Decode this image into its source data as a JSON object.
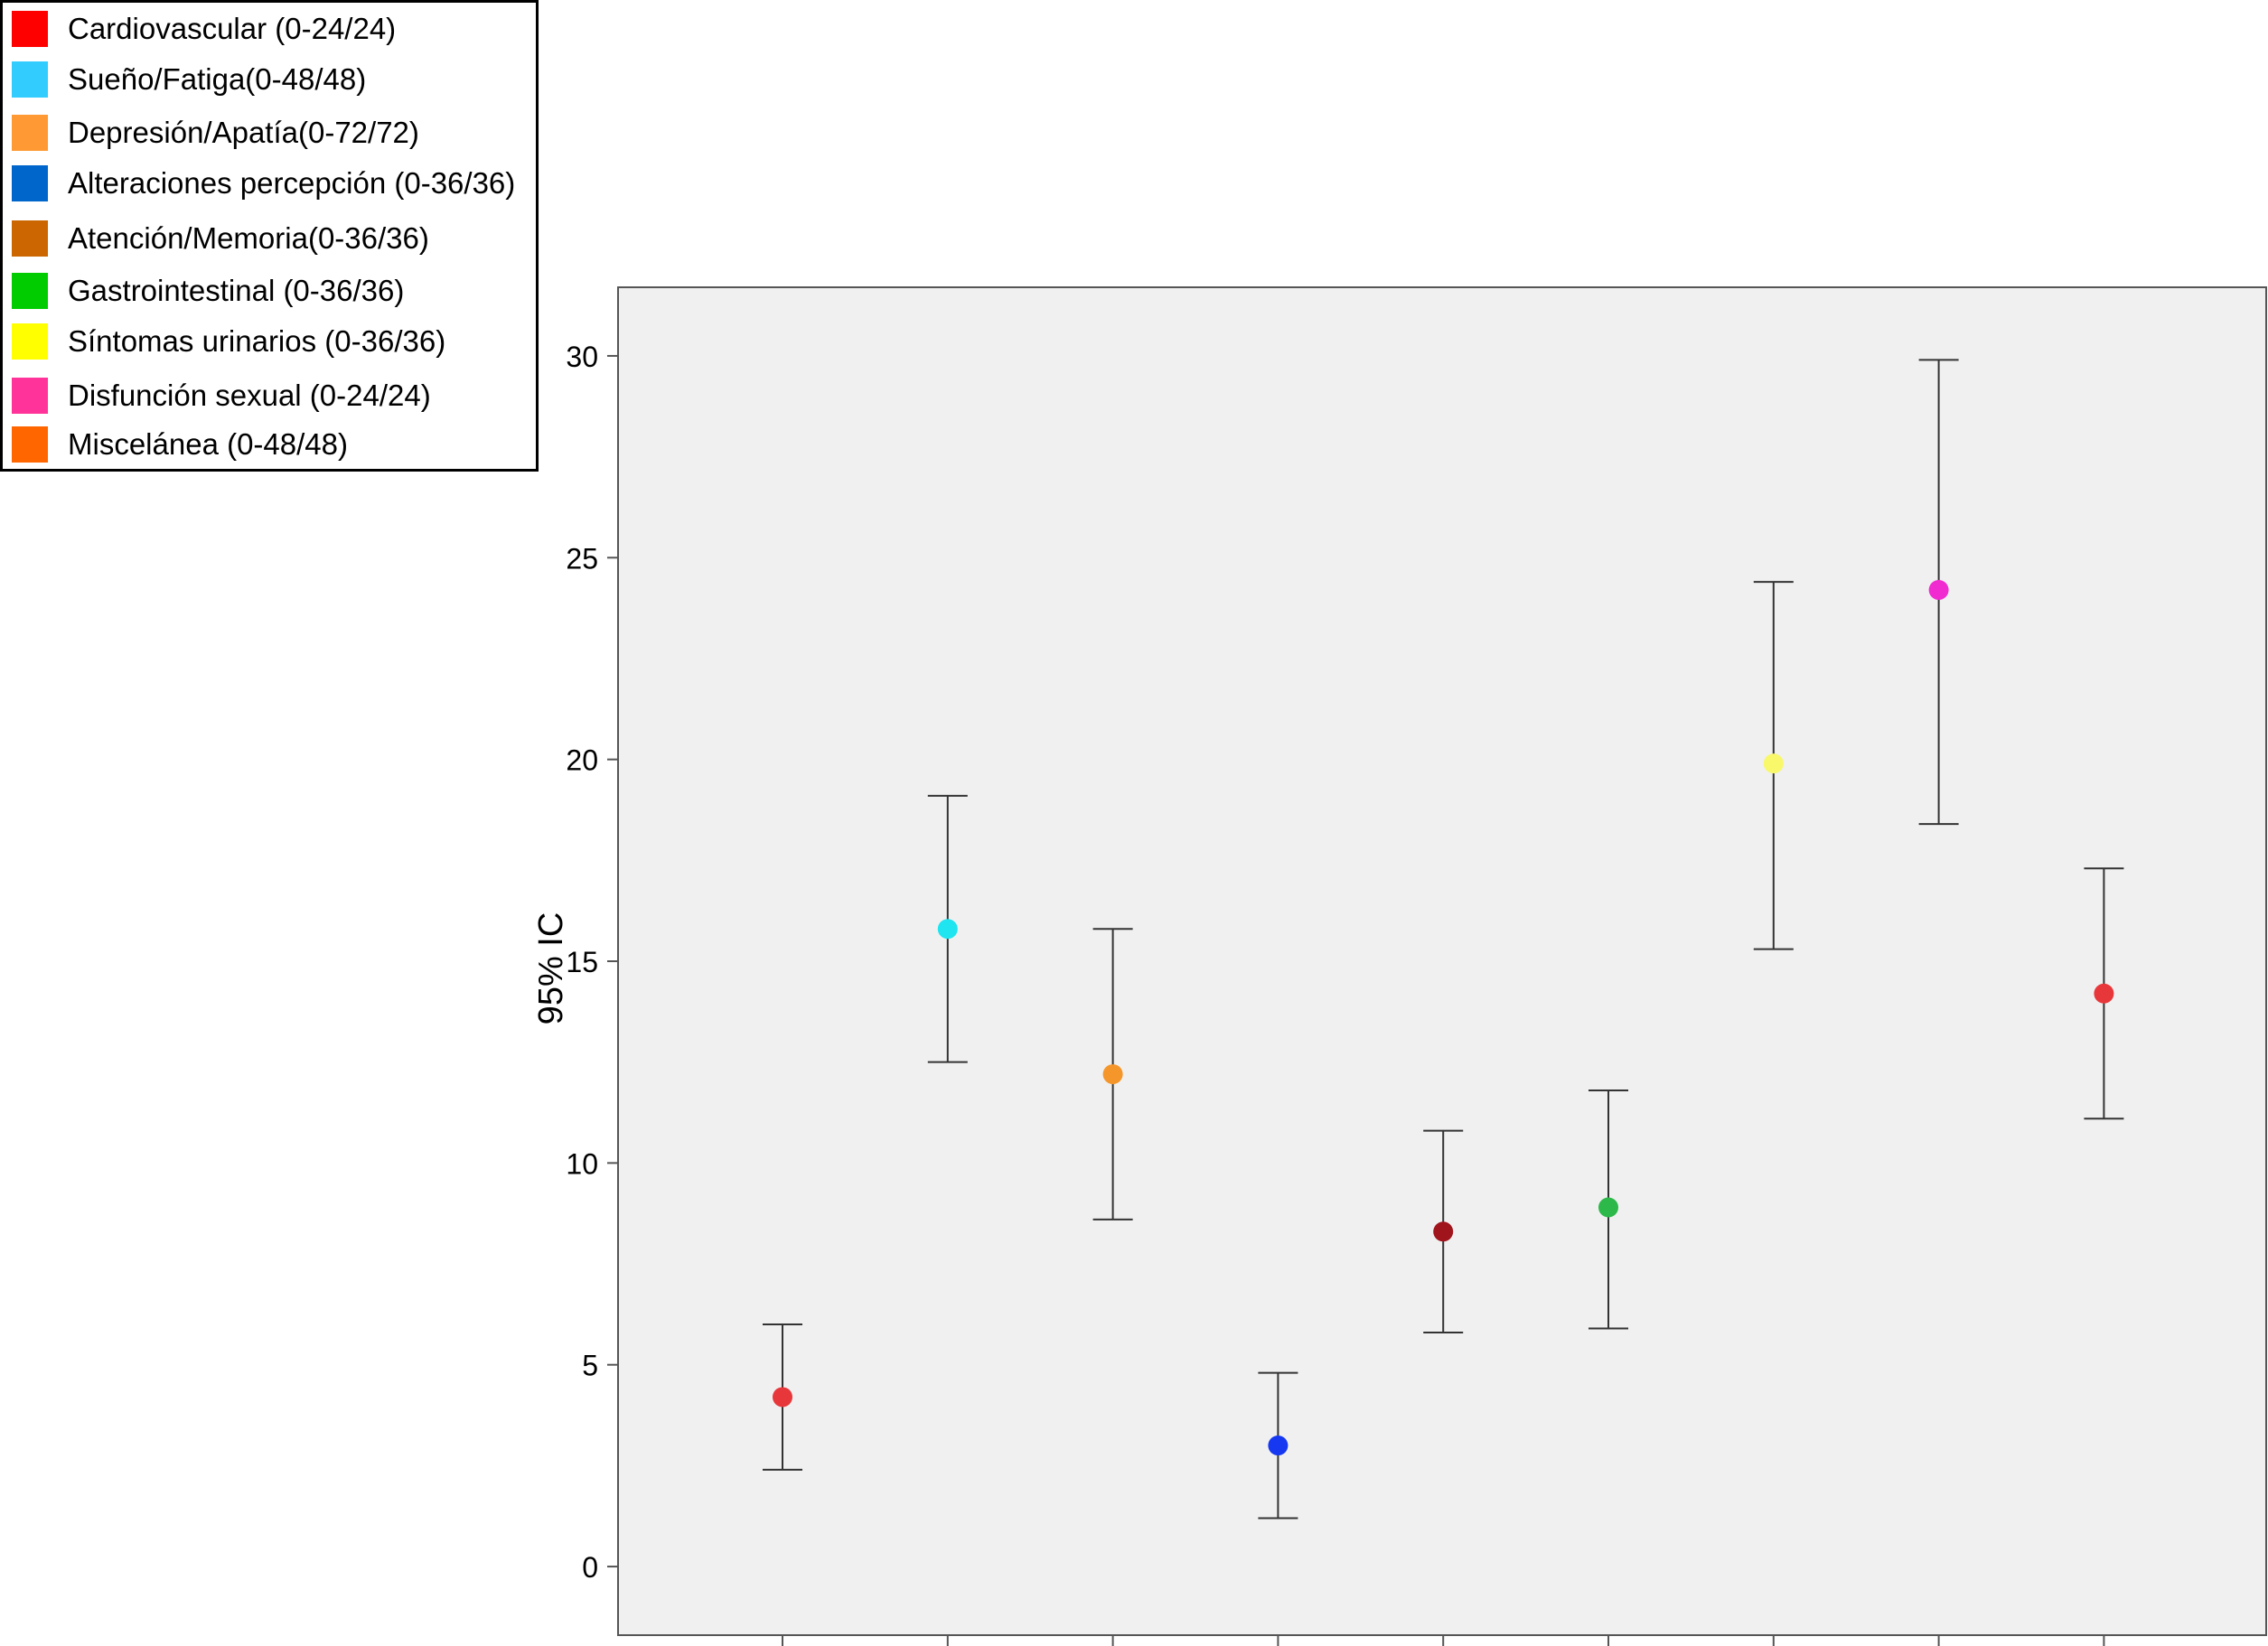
{
  "legend": {
    "items": [
      {
        "label": "Cardiovascular (0-24/24)",
        "color": "#ff0000"
      },
      {
        "label": "Sueño/Fatiga(0-48/48)",
        "color": "#33ccff"
      },
      {
        "label": "Depresión/Apatía(0-72/72)",
        "color": "#ff9933"
      },
      {
        "label": "Alteraciones percepción (0-36/36)",
        "color": "#0066cc"
      },
      {
        "label": "Atención/Memoria(0-36/36)",
        "color": "#cc6600"
      },
      {
        "label": "Gastrointestinal (0-36/36)",
        "color": "#00cc00"
      },
      {
        "label": "Síntomas urinarios (0-36/36)",
        "color": "#ffff00"
      },
      {
        "label": "Disfunción sexual (0-24/24)",
        "color": "#ff3399"
      },
      {
        "label": "Miscelánea (0-48/48)",
        "color": "#ff6600"
      }
    ]
  },
  "chart_data": {
    "type": "scatter",
    "subtype": "error-bar",
    "title": "",
    "xlabel": "",
    "ylabel": "95% IC",
    "ylim": [
      -1.7,
      31.7
    ],
    "yticks": [
      0,
      5,
      10,
      15,
      20,
      25,
      30
    ],
    "grid": false,
    "plot_background": "#f0f0f0",
    "legend_position": "top-left, outside plot",
    "points": [
      {
        "mean": 4.2,
        "lower": 2.4,
        "upper": 6.0,
        "color": "#e8373a"
      },
      {
        "mean": 15.8,
        "lower": 12.5,
        "upper": 19.1,
        "color": "#1ee5f0"
      },
      {
        "mean": 12.2,
        "lower": 8.6,
        "upper": 15.8,
        "color": "#f5962a"
      },
      {
        "mean": 3.0,
        "lower": 1.2,
        "upper": 4.8,
        "color": "#1638f0"
      },
      {
        "mean": 8.3,
        "lower": 5.8,
        "upper": 10.8,
        "color": "#a0141c"
      },
      {
        "mean": 8.9,
        "lower": 5.9,
        "upper": 11.8,
        "color": "#2db84a"
      },
      {
        "mean": 19.9,
        "lower": 15.3,
        "upper": 24.4,
        "color": "#f8f86a"
      },
      {
        "mean": 24.2,
        "lower": 18.4,
        "upper": 29.9,
        "color": "#f02cd0"
      },
      {
        "mean": 14.2,
        "lower": 11.1,
        "upper": 17.3,
        "color": "#e8373a"
      }
    ]
  }
}
